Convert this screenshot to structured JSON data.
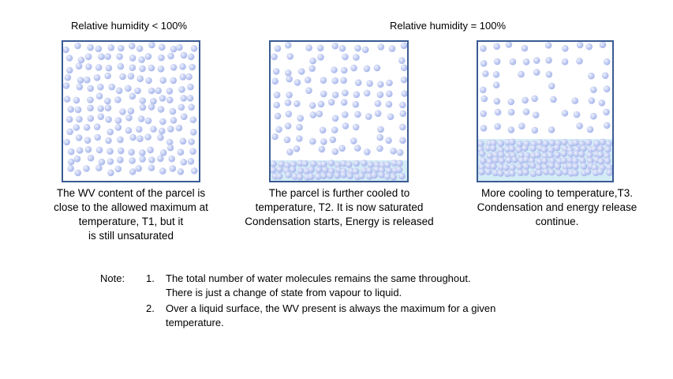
{
  "headings": {
    "left": "Relative humidity < 100%",
    "right": "Relative humidity = 100%"
  },
  "colors": {
    "molecule": "#a7b6ec",
    "molecule_highlight": "#eef1fc",
    "liquid": "#d4ecf6",
    "box_border": "#3a5b93"
  },
  "panels": [
    {
      "liquid_fraction": 0,
      "caption": [
        "The WV content of the parcel is",
        "close to the allowed maximum at",
        "temperature, T1, but it",
        "is still unsaturated"
      ]
    },
    {
      "liquid_fraction": 0.15,
      "caption": [
        "The parcel is further cooled to",
        "temperature, T2. It is now saturated",
        "Condensation starts, Energy is released"
      ]
    },
    {
      "liquid_fraction": 0.3,
      "caption": [
        "More cooling to temperature,T3.",
        "Condensation and energy release",
        "continue."
      ]
    }
  ],
  "note": {
    "label": "Note:",
    "items": [
      {
        "number": "1.",
        "lines": [
          "The total number of water molecules remains the same throughout.",
          "There is just a change of state from vapour to liquid."
        ]
      },
      {
        "number": "2.",
        "lines": [
          "Over a liquid surface, the WV present is always the maximum for a given",
          "temperature."
        ]
      }
    ]
  }
}
